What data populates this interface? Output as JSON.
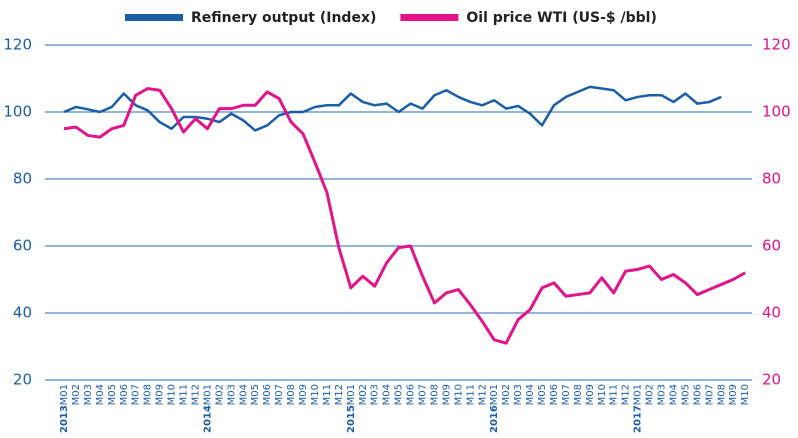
{
  "chart_data": {
    "type": "line",
    "categories": [
      "M01",
      "M02",
      "M03",
      "M04",
      "M05",
      "M06",
      "M07",
      "M08",
      "M09",
      "M10",
      "M11",
      "M12",
      "M01",
      "M02",
      "M03",
      "M04",
      "M05",
      "M06",
      "M07",
      "M08",
      "M09",
      "M10",
      "M11",
      "M12",
      "M01",
      "M02",
      "M03",
      "M04",
      "M05",
      "M06",
      "M07",
      "M08",
      "M09",
      "M10",
      "M11",
      "M12",
      "M01",
      "M02",
      "M03",
      "M04",
      "M05",
      "M06",
      "M07",
      "M08",
      "M09",
      "M10",
      "M11",
      "M12",
      "M01",
      "M02",
      "M03",
      "M04",
      "M05",
      "M06",
      "M07",
      "M08",
      "M09",
      "M10"
    ],
    "category_years": [
      "2013",
      null,
      null,
      null,
      null,
      null,
      null,
      null,
      null,
      null,
      null,
      null,
      "2014",
      null,
      null,
      null,
      null,
      null,
      null,
      null,
      null,
      null,
      null,
      null,
      "2015",
      null,
      null,
      null,
      null,
      null,
      null,
      null,
      null,
      null,
      null,
      null,
      "2016",
      null,
      null,
      null,
      null,
      null,
      null,
      null,
      null,
      null,
      null,
      null,
      "2017",
      null,
      null,
      null,
      null,
      null,
      null,
      null,
      null,
      null
    ],
    "series": [
      {
        "name": "Refinery output (Index)",
        "color": "#1b5ea8",
        "axis": "y",
        "values": [
          100,
          101.5,
          100.8,
          100,
          101.5,
          105.5,
          102,
          100.5,
          97,
          95,
          98.5,
          98.5,
          98,
          97,
          99.5,
          97.5,
          94.5,
          96,
          99,
          100,
          100,
          101.5,
          102,
          102,
          105.5,
          103,
          102,
          102.5,
          100,
          102.5,
          101,
          105,
          106.5,
          104.5,
          103,
          102,
          103.5,
          101,
          101.8,
          99.5,
          96,
          102,
          104.5,
          106,
          107.5,
          107,
          106.5,
          103.5,
          104.5,
          105,
          105,
          103,
          105.5,
          102.5,
          103,
          104.5,
          null,
          null
        ]
      },
      {
        "name": "Oil price WTI (US-$ /bbl)",
        "color": "#e3138b",
        "axis": "y2",
        "values": [
          95,
          95.5,
          93,
          92.5,
          95,
          96,
          105,
          107,
          106.5,
          101,
          94,
          98,
          95,
          101,
          101,
          102,
          102,
          106,
          104,
          97,
          93.5,
          85,
          76,
          59.5,
          47.5,
          51,
          48,
          55,
          59.5,
          60,
          51,
          43,
          46,
          47,
          42.5,
          37.5,
          32,
          31,
          38,
          41,
          47.5,
          49,
          45,
          45.5,
          46,
          50.5,
          46,
          52.5,
          53,
          54,
          50,
          51.5,
          49,
          45.5,
          47,
          48.5,
          50,
          52
        ]
      }
    ],
    "ylim": [
      20,
      120
    ],
    "yticks": [
      20,
      40,
      60,
      80,
      100,
      120
    ],
    "y2lim": [
      20,
      120
    ],
    "y2ticks": [
      20,
      40,
      60,
      80,
      100,
      120
    ],
    "y_color": "#1b5ea8",
    "y2_color": "#e3138b",
    "grid": true,
    "grid_color": "#2a6ab0",
    "legend": "top"
  }
}
